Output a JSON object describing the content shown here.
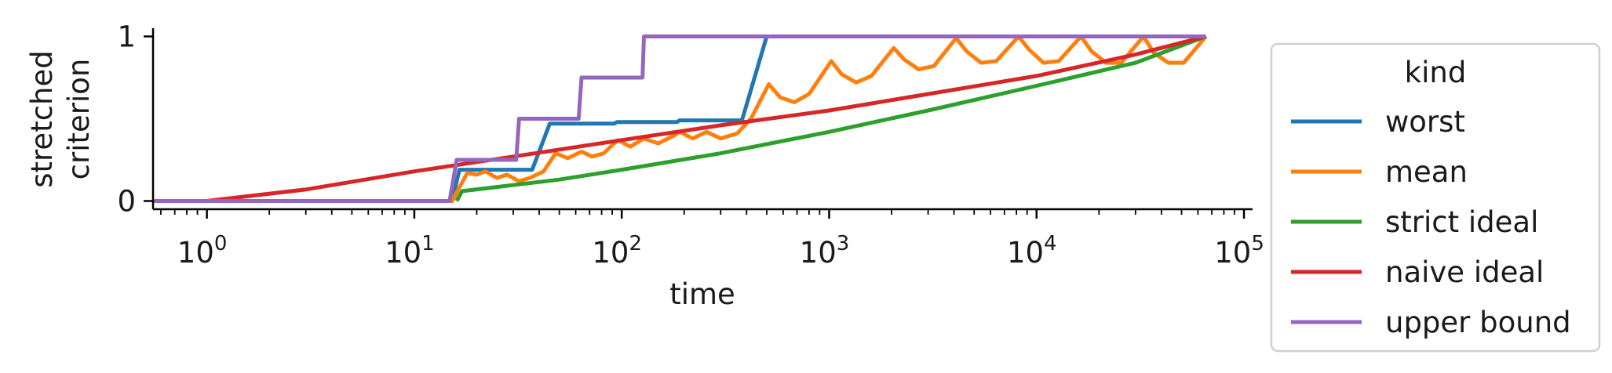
{
  "chart_data": {
    "type": "line",
    "xlabel": "time",
    "ylabel": [
      "stretched",
      "criterion"
    ],
    "xscale": "log",
    "xlim": [
      0.55,
      110000
    ],
    "ylim": [
      -0.05,
      1.05
    ],
    "x_ticks": [
      {
        "value": 1,
        "base": "10",
        "exp": "0"
      },
      {
        "value": 10,
        "base": "10",
        "exp": "1"
      },
      {
        "value": 100,
        "base": "10",
        "exp": "2"
      },
      {
        "value": 1000,
        "base": "10",
        "exp": "3"
      },
      {
        "value": 10000,
        "base": "10",
        "exp": "4"
      },
      {
        "value": 100000,
        "base": "10",
        "exp": "5"
      }
    ],
    "y_ticks": [
      {
        "value": 0,
        "label": "0"
      },
      {
        "value": 1,
        "label": "1"
      }
    ],
    "grid": false,
    "legend": {
      "title": "kind",
      "position": "outside-right"
    },
    "series": [
      {
        "name": "worst",
        "color": "#1f77b4",
        "points": [
          [
            0.55,
            0
          ],
          [
            15.2,
            0
          ],
          [
            16.5,
            0.19
          ],
          [
            37,
            0.19
          ],
          [
            45,
            0.47
          ],
          [
            92,
            0.47
          ],
          [
            95,
            0.48
          ],
          [
            185,
            0.48
          ],
          [
            190,
            0.49
          ],
          [
            380,
            0.49
          ],
          [
            500,
            1
          ],
          [
            65536,
            1
          ]
        ]
      },
      {
        "name": "mean",
        "color": "#ff7f0e",
        "points": [
          [
            0.55,
            0
          ],
          [
            15.2,
            0
          ],
          [
            18,
            0.17
          ],
          [
            20,
            0.16
          ],
          [
            22,
            0.18
          ],
          [
            25,
            0.14
          ],
          [
            28,
            0.16
          ],
          [
            32,
            0.12
          ],
          [
            36,
            0.14
          ],
          [
            42,
            0.18
          ],
          [
            48,
            0.29
          ],
          [
            55,
            0.26
          ],
          [
            64,
            0.3
          ],
          [
            72,
            0.27
          ],
          [
            82,
            0.29
          ],
          [
            90,
            0.34
          ],
          [
            96,
            0.37
          ],
          [
            110,
            0.33
          ],
          [
            128,
            0.38
          ],
          [
            150,
            0.35
          ],
          [
            180,
            0.4
          ],
          [
            190,
            0.42
          ],
          [
            220,
            0.38
          ],
          [
            256,
            0.42
          ],
          [
            300,
            0.38
          ],
          [
            360,
            0.41
          ],
          [
            420,
            0.5
          ],
          [
            512,
            0.71
          ],
          [
            580,
            0.63
          ],
          [
            680,
            0.6
          ],
          [
            800,
            0.65
          ],
          [
            1024,
            0.85
          ],
          [
            1150,
            0.77
          ],
          [
            1350,
            0.72
          ],
          [
            1600,
            0.76
          ],
          [
            2048,
            0.93
          ],
          [
            2300,
            0.86
          ],
          [
            2700,
            0.8
          ],
          [
            3200,
            0.82
          ],
          [
            4096,
            0.99
          ],
          [
            4600,
            0.91
          ],
          [
            5400,
            0.84
          ],
          [
            6400,
            0.85
          ],
          [
            8192,
            1
          ],
          [
            9200,
            0.92
          ],
          [
            10800,
            0.84
          ],
          [
            12800,
            0.85
          ],
          [
            16384,
            1
          ],
          [
            18400,
            0.91
          ],
          [
            21600,
            0.84
          ],
          [
            25600,
            0.84
          ],
          [
            32768,
            1
          ],
          [
            36800,
            0.9
          ],
          [
            43200,
            0.84
          ],
          [
            51200,
            0.84
          ],
          [
            65536,
            1
          ]
        ]
      },
      {
        "name": "strict ideal",
        "color": "#2ca02c",
        "points": [
          [
            16,
            0
          ],
          [
            17,
            0.06
          ],
          [
            50,
            0.13
          ],
          [
            100,
            0.19
          ],
          [
            300,
            0.29
          ],
          [
            1000,
            0.42
          ],
          [
            3000,
            0.55
          ],
          [
            10000,
            0.7
          ],
          [
            30000,
            0.84
          ],
          [
            65536,
            1
          ]
        ]
      },
      {
        "name": "naive ideal",
        "color": "#d62728",
        "points": [
          [
            1,
            0
          ],
          [
            3,
            0.07
          ],
          [
            10,
            0.18
          ],
          [
            30,
            0.27
          ],
          [
            100,
            0.37
          ],
          [
            300,
            0.46
          ],
          [
            1000,
            0.55
          ],
          [
            3000,
            0.65
          ],
          [
            10000,
            0.76
          ],
          [
            30000,
            0.89
          ],
          [
            65536,
            1
          ]
        ]
      },
      {
        "name": "upper bound",
        "color": "#9467bd",
        "points": [
          [
            0.55,
            0
          ],
          [
            14.8,
            0
          ],
          [
            16,
            0.25
          ],
          [
            31,
            0.25
          ],
          [
            32,
            0.5
          ],
          [
            62,
            0.5
          ],
          [
            64,
            0.75
          ],
          [
            126,
            0.75
          ],
          [
            128,
            1
          ],
          [
            65536,
            1
          ]
        ]
      }
    ]
  }
}
